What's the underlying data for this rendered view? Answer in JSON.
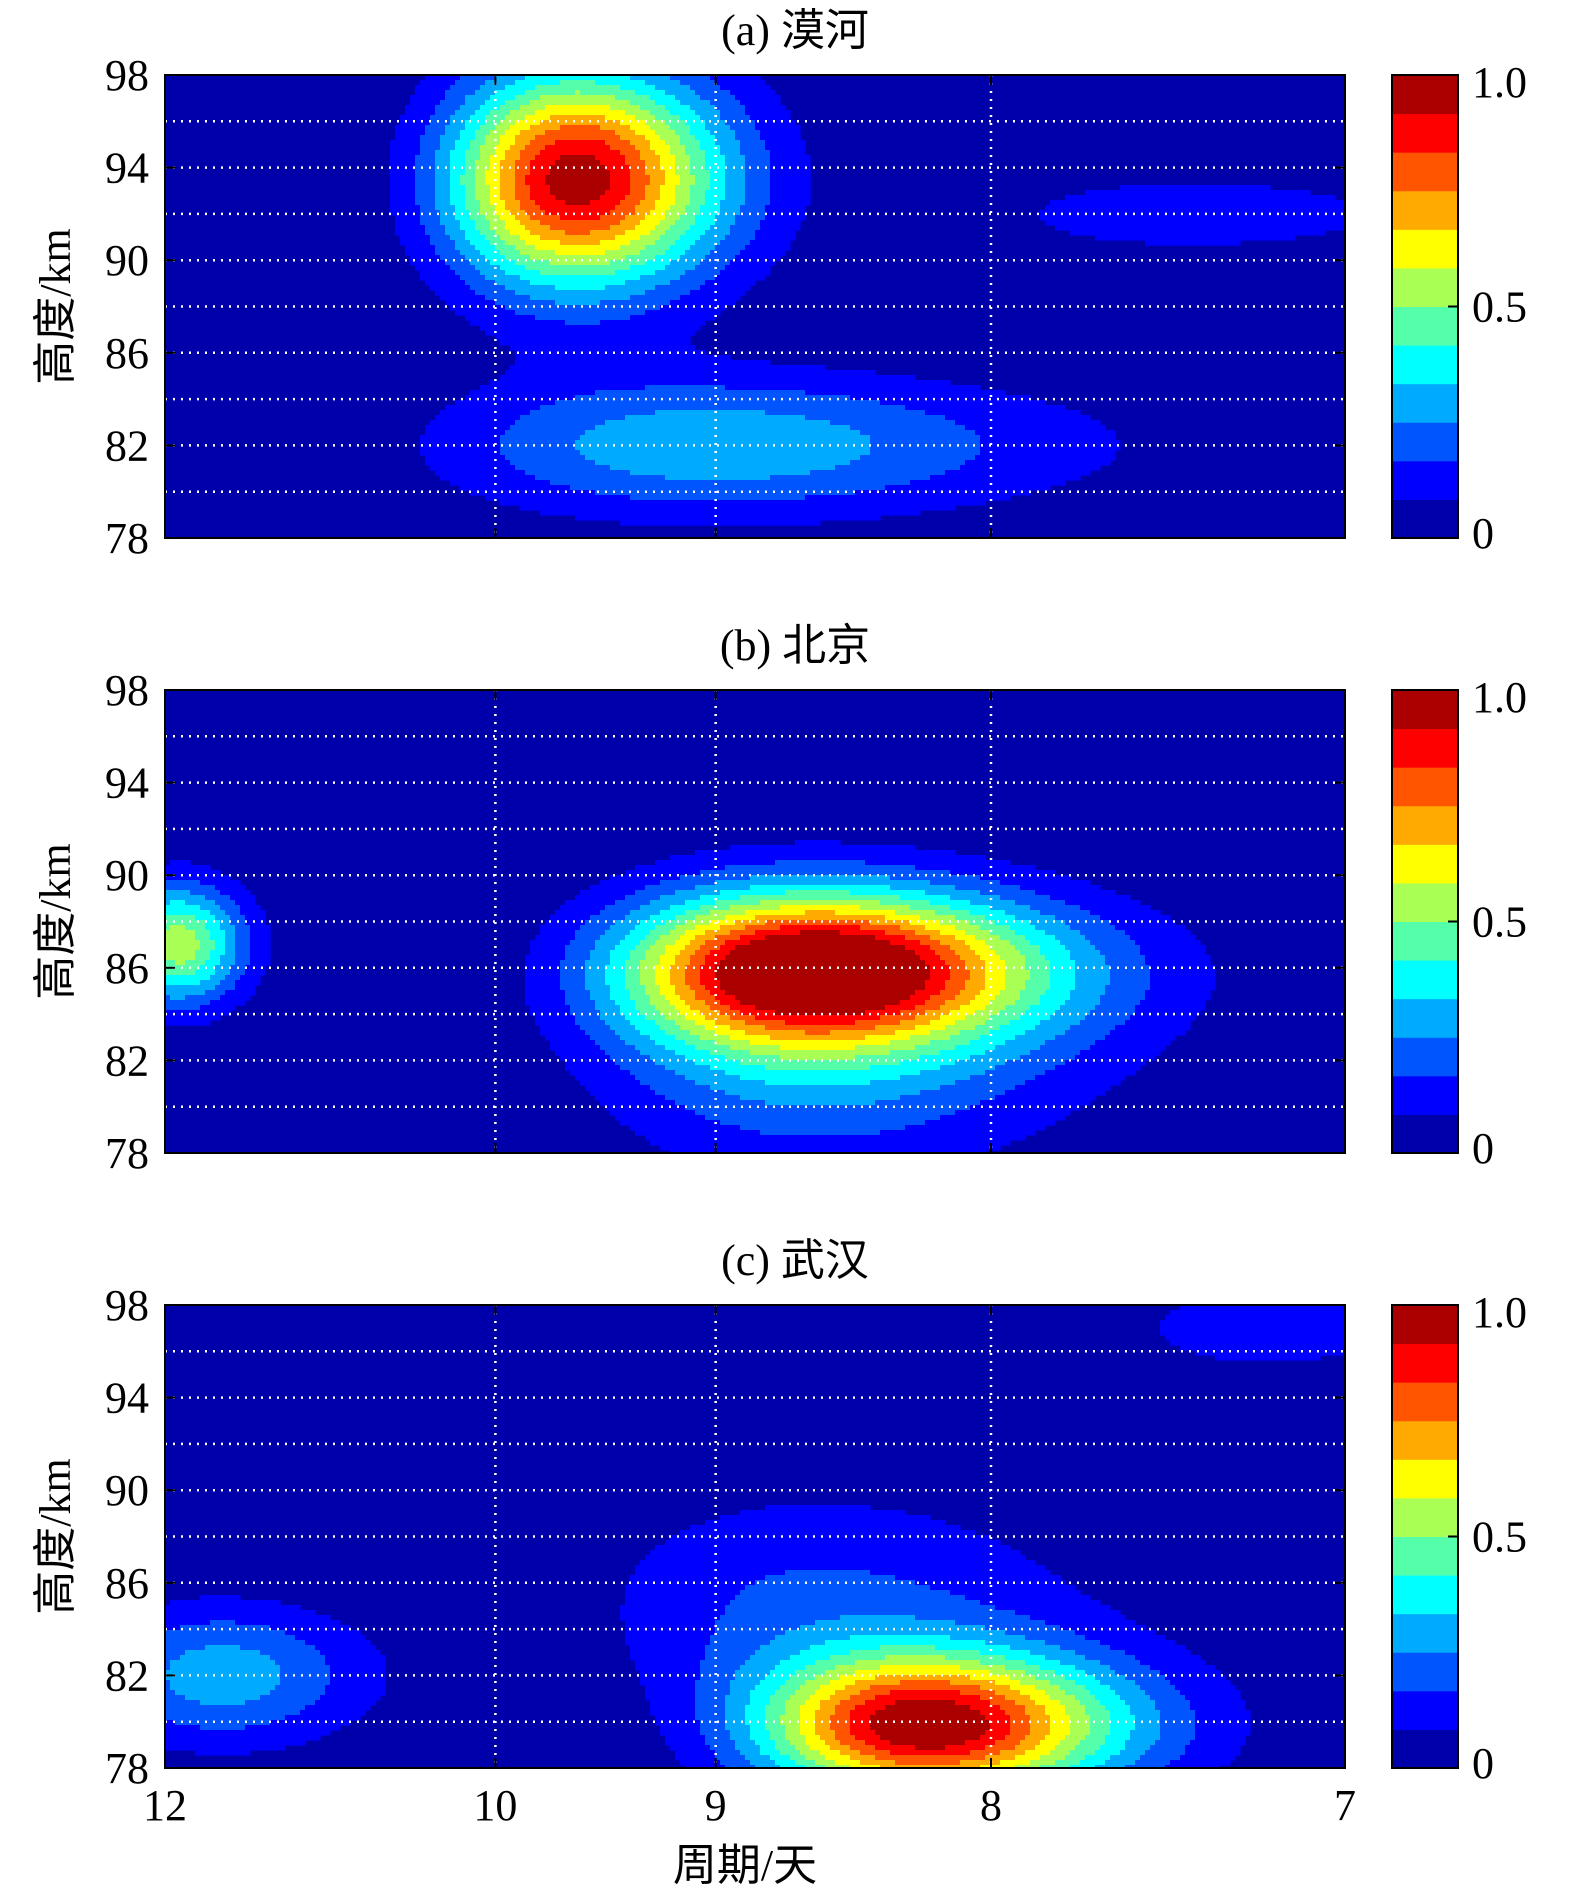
{
  "figure": {
    "xlabel": "周期/天",
    "colormap": "jet",
    "grid": "dotted-white",
    "x_scale": "reciprocal"
  },
  "chart_data": [
    {
      "type": "heatmap",
      "title": "(a) 漠河",
      "ylabel": "高度/km",
      "xlim": [
        12,
        7
      ],
      "ylim": [
        78,
        98
      ],
      "yticks": [
        78,
        82,
        86,
        90,
        94,
        98
      ],
      "xticks": [
        12,
        10,
        9,
        8,
        7
      ],
      "xtick_labels_visible": false,
      "clim": [
        0,
        1
      ],
      "colorbar_ticks": [
        "0",
        "0.5",
        "1.0"
      ],
      "peaks": [
        {
          "period": 9.6,
          "altitude": 93.5,
          "amplitude": 0.97,
          "s_period": 0.62,
          "s_alt": 4.6
        },
        {
          "period": 9.0,
          "altitude": 82.0,
          "amplitude": 0.32,
          "s_period": 1.2,
          "s_alt": 3.0
        },
        {
          "period": 7.4,
          "altitude": 92.0,
          "amplitude": 0.16,
          "s_period": 0.55,
          "s_alt": 1.6
        }
      ]
    },
    {
      "type": "heatmap",
      "title": "(b) 北京",
      "ylabel": "高度/km",
      "xlim": [
        12,
        7
      ],
      "ylim": [
        78,
        98
      ],
      "yticks": [
        78,
        82,
        86,
        90,
        94,
        98
      ],
      "xticks": [
        12,
        10,
        9,
        8,
        7
      ],
      "xtick_labels_visible": false,
      "clim": [
        0,
        1
      ],
      "colorbar_ticks": [
        "0",
        "0.5",
        "1.0"
      ],
      "peaks": [
        {
          "period": 8.6,
          "altitude": 86.0,
          "amplitude": 0.97,
          "s_period": 0.75,
          "s_alt": 3.2
        },
        {
          "period": 11.9,
          "altitude": 87.0,
          "amplitude": 0.55,
          "s_period": 0.45,
          "s_alt": 2.6
        },
        {
          "period": 8.6,
          "altitude": 83.0,
          "amplitude": 0.3,
          "s_period": 0.85,
          "s_alt": 5.5
        }
      ]
    },
    {
      "type": "heatmap",
      "title": "(c) 武汉",
      "ylabel": "高度/km",
      "xlim": [
        12,
        7
      ],
      "ylim": [
        78,
        98
      ],
      "yticks": [
        78,
        82,
        86,
        90,
        94,
        98
      ],
      "xticks": [
        12,
        10,
        9,
        8,
        7
      ],
      "xtick_labels": [
        "12",
        "10",
        "9",
        "8",
        "7"
      ],
      "xtick_labels_visible": true,
      "clim": [
        0,
        1
      ],
      "colorbar_ticks": [
        "0",
        "0.5",
        "1.0"
      ],
      "peaks": [
        {
          "period": 8.2,
          "altitude": 79.8,
          "amplitude": 0.97,
          "s_period": 0.6,
          "s_alt": 3.1
        },
        {
          "period": 11.6,
          "altitude": 82.0,
          "amplitude": 0.3,
          "s_period": 0.9,
          "s_alt": 3.0
        },
        {
          "period": 8.6,
          "altitude": 85.0,
          "amplitude": 0.18,
          "s_period": 0.9,
          "s_alt": 5.0
        },
        {
          "period": 7.2,
          "altitude": 97.0,
          "amplitude": 0.14,
          "s_period": 0.4,
          "s_alt": 2.0
        }
      ]
    }
  ]
}
